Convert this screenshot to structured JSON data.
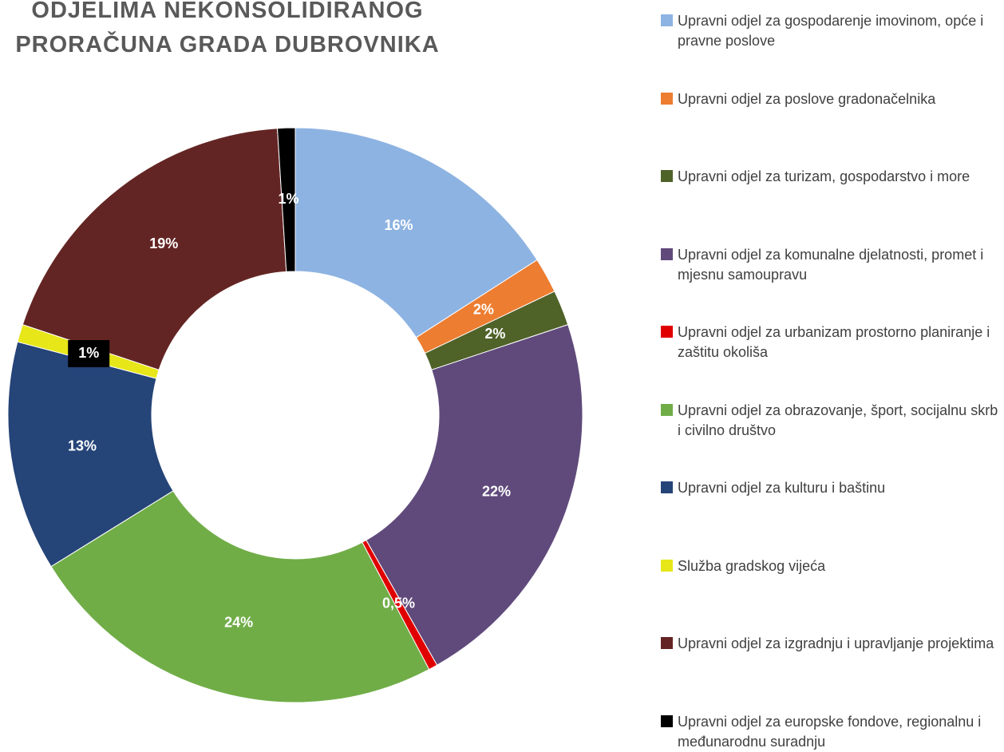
{
  "chart_data": {
    "type": "donut",
    "title": [
      "ODJELIMA NEKONSOLIDIRANOG",
      "PRORAČUNA GRADA DUBROVNIKA"
    ],
    "categories": [
      "Upravni odjel za gospodarenje imovinom, opće i pravne poslove",
      "Upravni odjel za poslove gradonačelnika",
      "Upravni odjel za turizam, gospodarstvo i more",
      "Upravni odjel za komunalne djelatnosti, promet i mjesnu samoupravu",
      "Upravni odjel za urbanizam prostorno planiranje  i zaštitu okoliša",
      "Upravni odjel za obrazovanje, šport, socijalnu skrb i civilno društvo",
      "Upravni odjel za kulturu i baštinu",
      "Služba gradskog vijeća",
      "Upravni odjel za izgradnju i upravljanje projektima",
      "Upravni odjel za europske fondove, regionalnu i međunarodnu suradnju"
    ],
    "values": [
      16,
      2,
      2,
      22,
      0.5,
      24,
      13,
      1,
      19,
      1
    ],
    "value_labels": [
      "16%",
      "2%",
      "2%",
      "22%",
      "0,5%",
      "24%",
      "13%",
      "1%",
      "19%",
      "1%"
    ],
    "colors": [
      "#8DB3E2",
      "#ED7D31",
      "#4F6228",
      "#604A7B",
      "#E00000",
      "#70AD47",
      "#254478",
      "#E6E619",
      "#632523",
      "#000000"
    ],
    "legend": "right"
  }
}
